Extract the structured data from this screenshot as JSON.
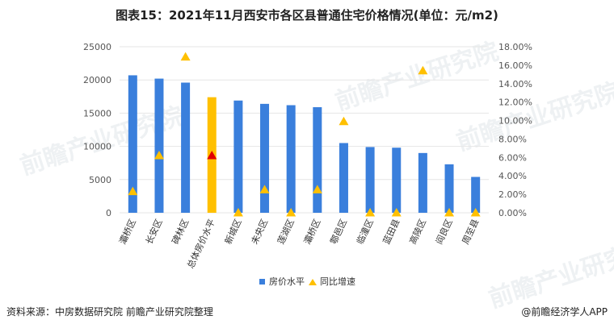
{
  "title": "图表15：2021年11月西安市各区县普通住宅价格情况(单位：元/m2)",
  "source": "资料来源：中房数据研究院 前瞻产业研究院整理",
  "credit": "@前瞻经济学人APP",
  "watermark": "前瞻产业研究院",
  "colors": {
    "bar": "#3a7fdc",
    "bar_highlight": "#ffc000",
    "triangle": "#ffc000",
    "triangle_highlight": "#e00000",
    "grid": "#e6e6e6"
  },
  "chart_data": {
    "type": "bar",
    "categories": [
      "灞桥区",
      "长安区",
      "碑林区",
      "总体房价水平",
      "新城区",
      "未央区",
      "莲湖区",
      "灞桥区",
      "鄠邑区",
      "临潼区",
      "蓝田县",
      "高陵区",
      "阎良区",
      "周至县"
    ],
    "highlight_index": 3,
    "series": [
      {
        "name": "房价水平",
        "type": "bar",
        "axis": "left",
        "values": [
          20700,
          20200,
          19600,
          17400,
          16900,
          16400,
          16200,
          15900,
          10500,
          9900,
          9800,
          9000,
          7300,
          5400
        ]
      },
      {
        "name": "同比增速",
        "type": "scatter",
        "marker": "triangle",
        "axis": "right",
        "values": [
          0.023,
          0.062,
          0.169,
          0.062,
          0.0,
          0.025,
          0.0,
          0.025,
          0.099,
          0.0,
          0.0,
          0.154,
          0.0,
          0.0
        ]
      }
    ],
    "y_left": {
      "min": 0,
      "max": 25000,
      "ticks": [
        "0",
        "5000",
        "10000",
        "15000",
        "20000",
        "25000"
      ]
    },
    "y_right": {
      "min": 0,
      "max": 0.18,
      "ticks": [
        "0.00%",
        "2.00%",
        "4.00%",
        "6.00%",
        "8.00%",
        "10.00%",
        "12.00%",
        "14.00%",
        "16.00%",
        "18.00%"
      ]
    },
    "legend": {
      "position": "bottom",
      "items": [
        "房价水平",
        "同比增速"
      ]
    },
    "grid": true
  }
}
